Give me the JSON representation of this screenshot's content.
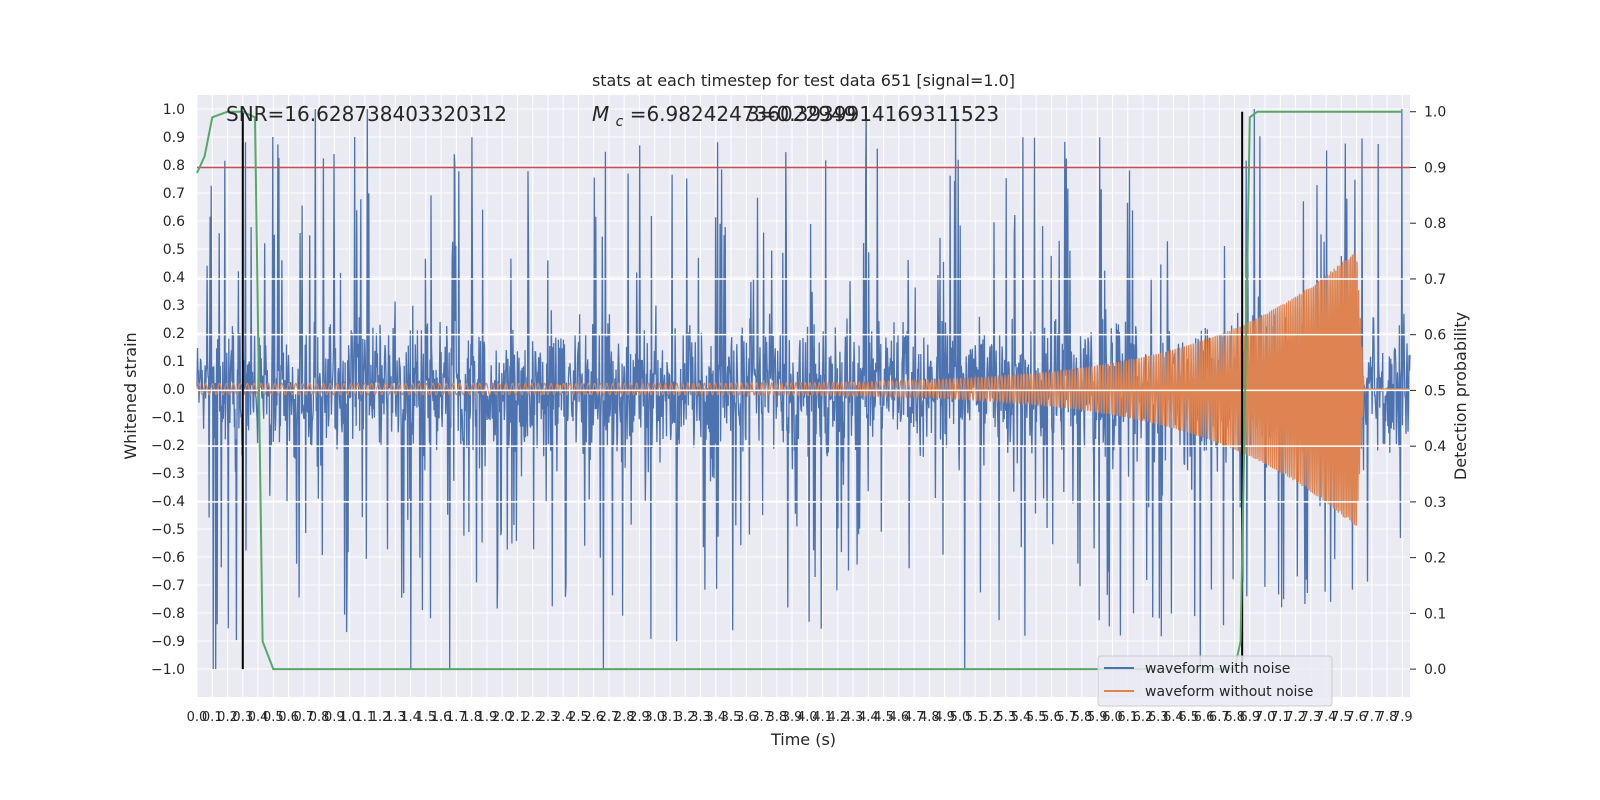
{
  "chart_data": {
    "type": "line",
    "title": "stats at each timestep for test data 651 [signal=1.0]",
    "xlabel": "Time (s)",
    "ylabel_left": "Whitened strain",
    "ylabel_right": "Detection probability",
    "xlim": [
      0.0,
      7.95
    ],
    "ylim_left": [
      -1.1,
      1.05
    ],
    "ylim_right": [
      -0.05,
      1.03
    ],
    "x_ticks": [
      "0.0",
      "0.1",
      "0.2",
      "0.3",
      "0.4",
      "0.5",
      "0.6",
      "0.7",
      "0.8",
      "0.9",
      "1.0",
      "1.1",
      "1.2",
      "1.3",
      "1.4",
      "1.5",
      "1.6",
      "1.7",
      "1.8",
      "1.9",
      "2.0",
      "2.1",
      "2.2",
      "2.3",
      "2.4",
      "2.5",
      "2.6",
      "2.7",
      "2.8",
      "2.9",
      "3.0",
      "3.1",
      "3.2",
      "3.3",
      "3.4",
      "3.5",
      "3.6",
      "3.7",
      "3.8",
      "3.9",
      "4.0",
      "4.1",
      "4.2",
      "4.3",
      "4.4",
      "4.5",
      "4.6",
      "4.7",
      "4.8",
      "4.9",
      "5.0",
      "5.1",
      "5.2",
      "5.3",
      "5.4",
      "5.5",
      "5.6",
      "5.7",
      "5.8",
      "5.9",
      "6.0",
      "6.1",
      "6.2",
      "6.3",
      "6.4",
      "6.5",
      "6.6",
      "6.7",
      "6.8",
      "6.9",
      "7.0",
      "7.1",
      "7.2",
      "7.3",
      "7.4",
      "7.5",
      "7.6",
      "7.7",
      "7.8",
      "7.9"
    ],
    "y_ticks_left": [
      "1.0",
      "0.9",
      "0.8",
      "0.7",
      "0.6",
      "0.5",
      "0.4",
      "0.3",
      "0.2",
      "0.1",
      "0.0",
      "-0.1",
      "-0.2",
      "-0.3",
      "-0.4",
      "-0.5",
      "-0.6",
      "-0.7",
      "-0.8",
      "-0.9",
      "-1.0"
    ],
    "y_ticks_right": [
      "1.0",
      "0.9",
      "0.8",
      "0.7",
      "0.6",
      "0.5",
      "0.4",
      "0.3",
      "0.2",
      "0.1",
      "0.0"
    ],
    "annotations": {
      "snr": "SNR=16.628738403320312",
      "mc_symbol": "M",
      "mc_sub": "c",
      "mc_value": "=6.982424736022949",
      "overlap_value": "3=0.3939914169311523"
    },
    "threshold_right": 0.9,
    "vertical_lines_x": [
      0.3,
      6.85
    ],
    "series": [
      {
        "name": "waveform with noise",
        "color": "#4c72b0",
        "axis": "left",
        "envelope": 0.36,
        "spike_max": 1.0
      },
      {
        "name": "waveform without noise",
        "color": "#dd8452",
        "axis": "left",
        "chirp": {
          "start_amp": 0.02,
          "peak_amp": 0.5,
          "peak_time": 7.6,
          "end_time": 7.65,
          "start_freq": 22,
          "end_freq": 95
        }
      },
      {
        "name": "detection probability",
        "color": "#55a868",
        "axis": "right",
        "x": [
          0.0,
          0.05,
          0.1,
          0.2,
          0.3,
          0.38,
          0.43,
          0.5,
          6.8,
          6.84,
          6.87,
          6.9,
          6.95,
          7.0,
          7.3,
          7.9
        ],
        "y": [
          0.89,
          0.92,
          0.99,
          1.0,
          1.0,
          0.99,
          0.05,
          0.0,
          0.0,
          0.05,
          0.5,
          0.99,
          1.0,
          1.0,
          1.0,
          1.0
        ]
      },
      {
        "name": "threshold",
        "color": "#c44e52",
        "axis": "right"
      }
    ],
    "legend": {
      "position": "bottom-right",
      "entries": [
        {
          "label": "waveform with noise",
          "color": "#4c72b0"
        },
        {
          "label": "waveform without noise",
          "color": "#dd8452"
        }
      ]
    },
    "grid": true
  }
}
